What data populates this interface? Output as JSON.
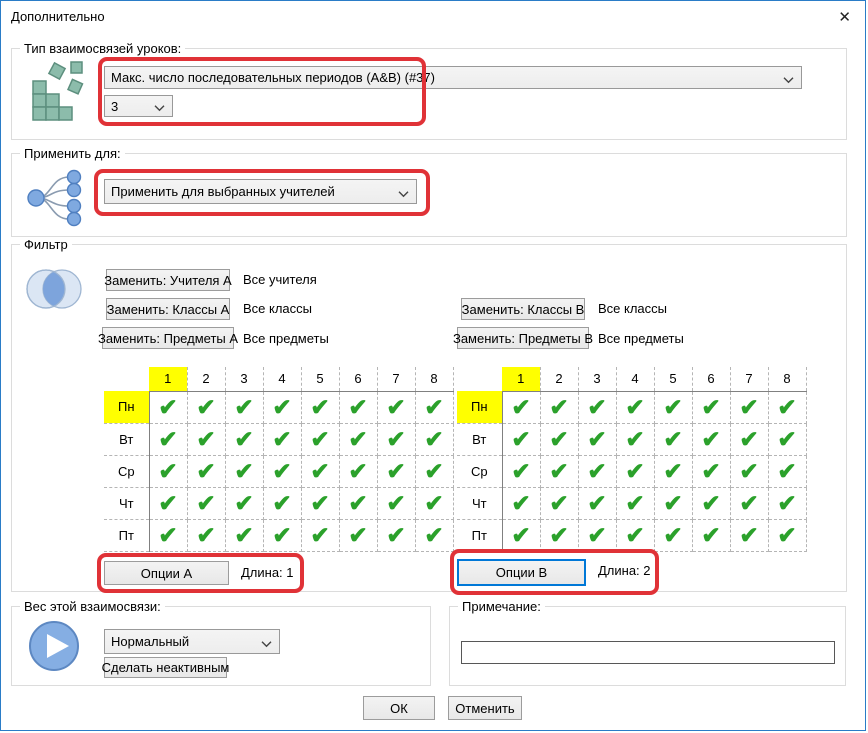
{
  "window": {
    "title": "Дополнительно",
    "close_glyph": "✕"
  },
  "type_group": {
    "label": "Тип взаимосвязей уроков:",
    "type_select_value": "Макс. число последовательных периодов (A&B) (#37)",
    "count_select_value": "3"
  },
  "apply_group": {
    "label": "Применить для:",
    "apply_select_value": "Применить для выбранных учителей"
  },
  "filter_group": {
    "label": "Фильтр",
    "left_buttons": [
      {
        "button": "Заменить: Учителя А",
        "value": "Все учителя"
      },
      {
        "button": "Заменить: Классы А",
        "value": "Все классы"
      },
      {
        "button": "Заменить: Предметы А",
        "value": "Все предметы"
      }
    ],
    "right_buttons": [
      {
        "button": "Заменить: Классы В",
        "value": "Все классы"
      },
      {
        "button": "Заменить: Предметы В",
        "value": "Все предметы"
      }
    ],
    "grid": {
      "periods": [
        "1",
        "2",
        "3",
        "4",
        "5",
        "6",
        "7",
        "8"
      ],
      "days": [
        "Пн",
        "Вт",
        "Ср",
        "Чт",
        "Пт"
      ],
      "all_checked": true,
      "check_glyph": "✔",
      "highlight_color": "#ffff00",
      "check_color": "#2ba12b"
    },
    "table_a": {
      "options_button": "Опции А",
      "length_text": "Длина: 1"
    },
    "table_b": {
      "options_button": "Опции В",
      "length_text": "Длина: 2"
    }
  },
  "weight_group": {
    "label": "Вес этой взаимосвязи:",
    "weight_select_value": "Нормальный",
    "inactive_button": "Сделать неактивным"
  },
  "note_group": {
    "label": "Примечание:",
    "input_value": ""
  },
  "footer": {
    "ok_button": "ОК",
    "cancel_button": "Отменить"
  },
  "annotation_color": "#e03237"
}
